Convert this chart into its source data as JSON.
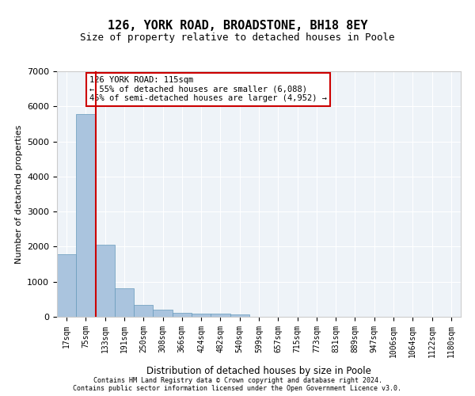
{
  "title1": "126, YORK ROAD, BROADSTONE, BH18 8EY",
  "title2": "Size of property relative to detached houses in Poole",
  "xlabel": "Distribution of detached houses by size in Poole",
  "ylabel": "Number of detached properties",
  "bar_labels": [
    "17sqm",
    "75sqm",
    "133sqm",
    "191sqm",
    "250sqm",
    "308sqm",
    "366sqm",
    "424sqm",
    "482sqm",
    "540sqm",
    "599sqm",
    "657sqm",
    "715sqm",
    "773sqm",
    "831sqm",
    "889sqm",
    "947sqm",
    "1006sqm",
    "1064sqm",
    "1122sqm",
    "1180sqm"
  ],
  "bar_values": [
    1780,
    5780,
    2060,
    820,
    340,
    200,
    110,
    100,
    100,
    70,
    10,
    5,
    3,
    2,
    1,
    1,
    1,
    1,
    1,
    1,
    1
  ],
  "bar_color": "#aac4de",
  "bar_edge_color": "#6699bb",
  "bar_width": 1.0,
  "vline_position": 1.53,
  "vline_color": "#cc0000",
  "annotation_text": "126 YORK ROAD: 115sqm\n← 55% of detached houses are smaller (6,088)\n45% of semi-detached houses are larger (4,952) →",
  "annotation_box_color": "#cc0000",
  "ylim": [
    0,
    7000
  ],
  "yticks": [
    0,
    1000,
    2000,
    3000,
    4000,
    5000,
    6000,
    7000
  ],
  "background_color": "#eef3f8",
  "grid_color": "#ffffff",
  "footer_line1": "Contains HM Land Registry data © Crown copyright and database right 2024.",
  "footer_line2": "Contains public sector information licensed under the Open Government Licence v3.0."
}
